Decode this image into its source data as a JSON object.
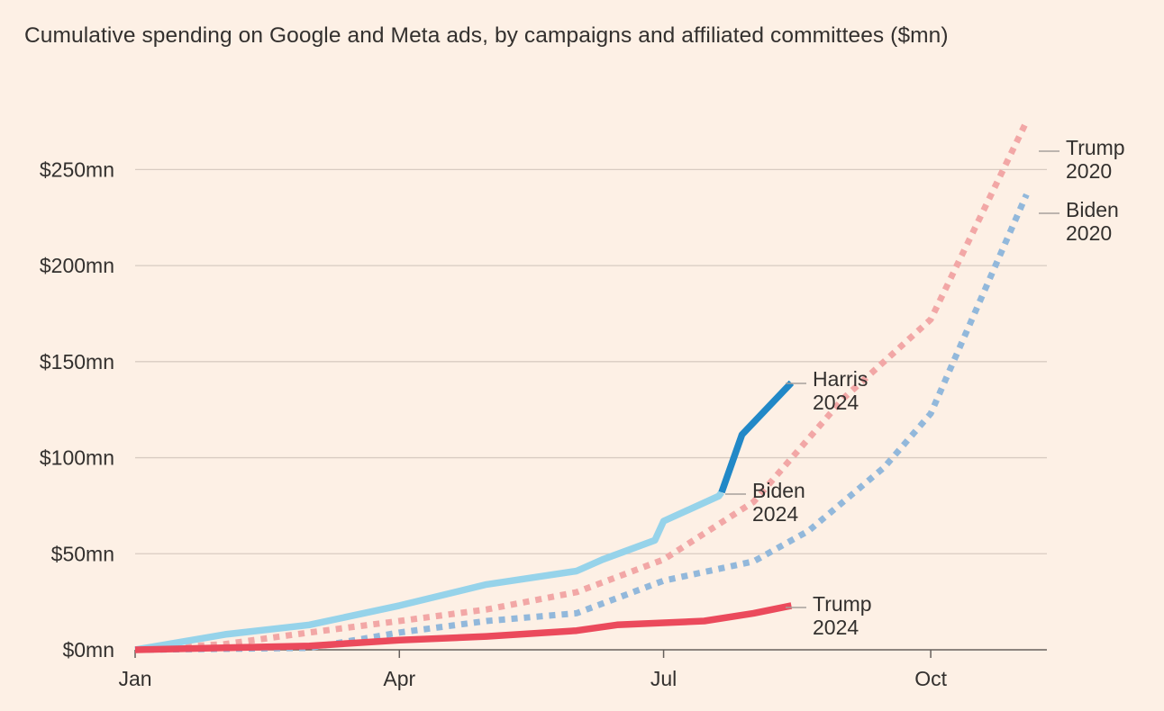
{
  "title": "Cumulative spending on Google and Meta ads, by campaigns and affiliated committees ($mn)",
  "colors": {
    "background": "#fdf0e5",
    "grid": "#d8cbc2",
    "text": "#33302e",
    "trump_2020": "#f2a7a6",
    "biden_2020": "#92b8db",
    "biden_2024": "#96d3ea",
    "harris_2024": "#2188c7",
    "trump_2024": "#eb4a5c"
  },
  "chart_data": {
    "type": "line",
    "title": "Cumulative spending on Google and Meta ads, by campaigns and affiliated committees ($mn)",
    "x_axis": {
      "type": "date",
      "range": [
        "2024-01-01",
        "2024-11-10"
      ],
      "ticks": [
        {
          "value": "2024-01-01",
          "label": "Jan"
        },
        {
          "value": "2024-04-01",
          "label": "Apr"
        },
        {
          "value": "2024-07-01",
          "label": "Jul"
        },
        {
          "value": "2024-10-01",
          "label": "Oct"
        }
      ]
    },
    "y_axis": {
      "range": [
        0,
        275
      ],
      "ticks": [
        {
          "value": 0,
          "label": "$0mn"
        },
        {
          "value": 50,
          "label": "$50mn"
        },
        {
          "value": 100,
          "label": "$100mn"
        },
        {
          "value": 150,
          "label": "$150mn"
        },
        {
          "value": 200,
          "label": "$200mn"
        },
        {
          "value": 250,
          "label": "$250mn"
        }
      ]
    },
    "grid": true,
    "series": [
      {
        "key": "trump_2020",
        "label_line1": "Trump",
        "label_line2": "2020",
        "style": "dotted",
        "points": [
          [
            "2024-01-01",
            0
          ],
          [
            "2024-02-01",
            3
          ],
          [
            "2024-03-01",
            9
          ],
          [
            "2024-04-01",
            15
          ],
          [
            "2024-05-01",
            21
          ],
          [
            "2024-06-01",
            30
          ],
          [
            "2024-07-01",
            47
          ],
          [
            "2024-08-01",
            77
          ],
          [
            "2024-09-01",
            131
          ],
          [
            "2024-10-01",
            172
          ],
          [
            "2024-11-03",
            275
          ]
        ]
      },
      {
        "key": "biden_2020",
        "label_line1": "Biden",
        "label_line2": "2020",
        "style": "dotted",
        "points": [
          [
            "2024-01-01",
            0
          ],
          [
            "2024-03-01",
            1
          ],
          [
            "2024-04-01",
            9
          ],
          [
            "2024-05-01",
            15
          ],
          [
            "2024-06-01",
            19
          ],
          [
            "2024-07-01",
            36
          ],
          [
            "2024-08-01",
            46
          ],
          [
            "2024-08-20",
            62
          ],
          [
            "2024-09-15",
            95
          ],
          [
            "2024-10-01",
            123
          ],
          [
            "2024-11-03",
            237
          ]
        ]
      },
      {
        "key": "biden_2024",
        "label_line1": "Biden",
        "label_line2": "2024",
        "style": "solid",
        "points": [
          [
            "2024-01-01",
            0
          ],
          [
            "2024-02-01",
            8
          ],
          [
            "2024-03-01",
            13
          ],
          [
            "2024-04-01",
            23
          ],
          [
            "2024-05-01",
            34
          ],
          [
            "2024-06-01",
            41
          ],
          [
            "2024-06-10",
            47
          ],
          [
            "2024-06-28",
            57
          ],
          [
            "2024-07-01",
            67
          ],
          [
            "2024-07-20",
            80
          ],
          [
            "2024-07-21",
            82
          ]
        ]
      },
      {
        "key": "harris_2024",
        "label_line1": "Harris",
        "label_line2": "2024",
        "style": "solid",
        "points": [
          [
            "2024-07-21",
            82
          ],
          [
            "2024-07-28",
            112
          ],
          [
            "2024-08-14",
            139
          ]
        ]
      },
      {
        "key": "trump_2024",
        "label_line1": "Trump",
        "label_line2": "2024",
        "style": "solid",
        "points": [
          [
            "2024-01-01",
            0
          ],
          [
            "2024-03-01",
            2
          ],
          [
            "2024-04-01",
            5
          ],
          [
            "2024-05-01",
            7
          ],
          [
            "2024-06-01",
            10
          ],
          [
            "2024-06-15",
            13
          ],
          [
            "2024-07-15",
            15
          ],
          [
            "2024-08-01",
            19
          ],
          [
            "2024-08-14",
            23
          ]
        ]
      }
    ]
  }
}
